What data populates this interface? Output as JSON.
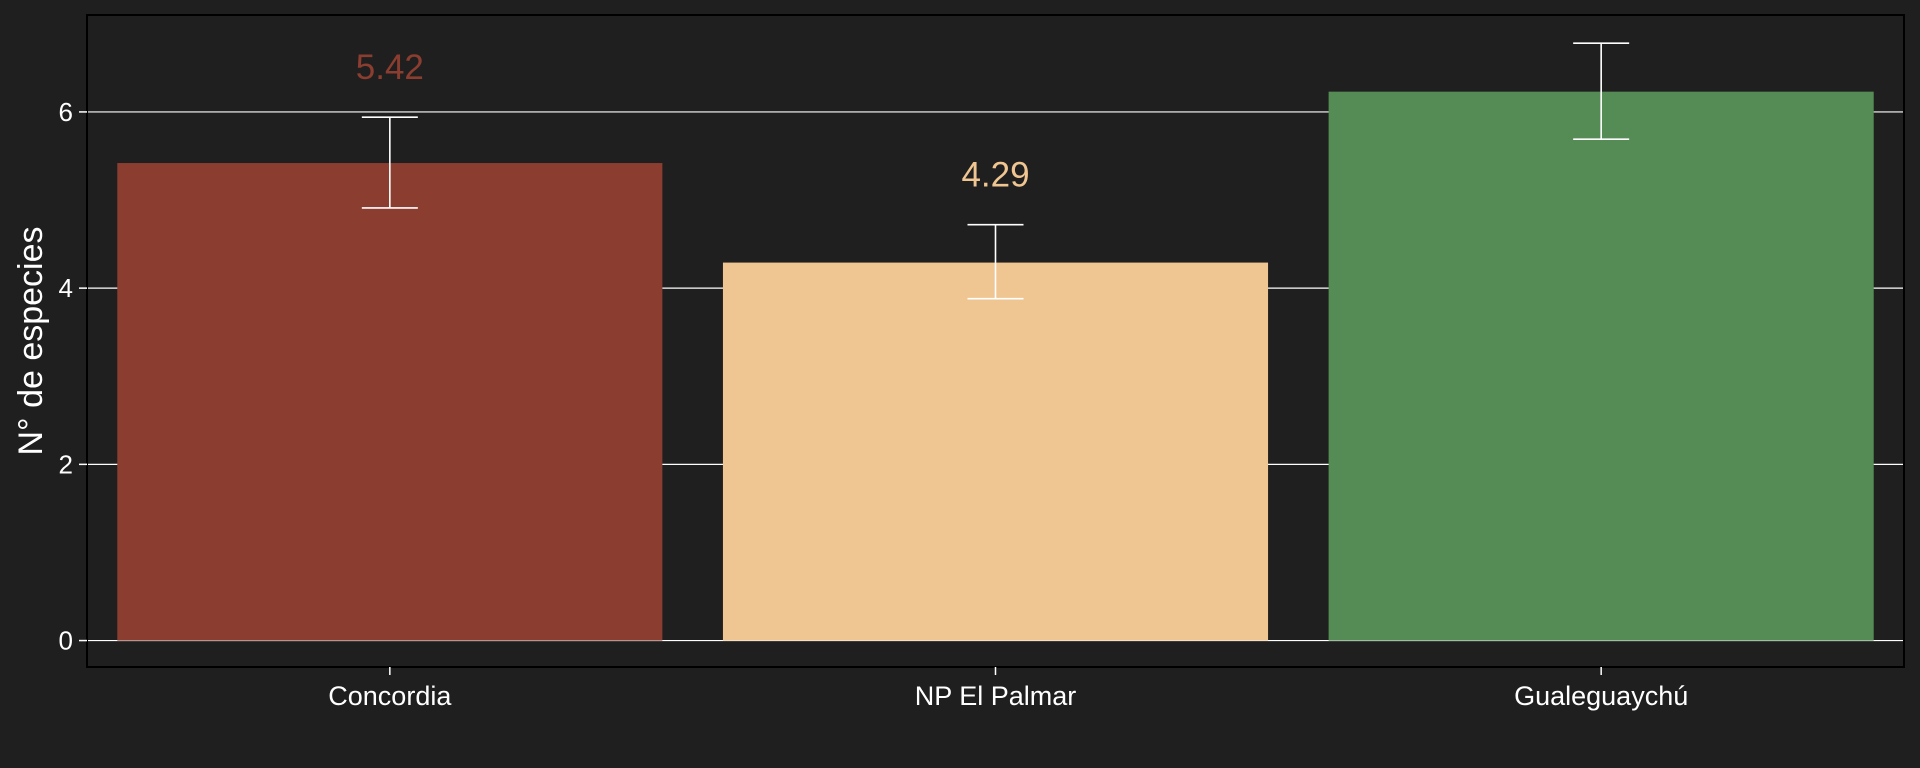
{
  "chart_data": {
    "type": "bar",
    "title": "",
    "xlabel": "",
    "ylabel": "N° de especies",
    "ylim": [
      -0.3,
      7.1
    ],
    "y_ticks": [
      0,
      2,
      4,
      6
    ],
    "y_tick_labels": [
      "0",
      "2",
      "4",
      "6"
    ],
    "grid": "horizontal-major",
    "legend": "none",
    "categories": [
      "Concordia",
      "NP El Palmar",
      "Gualeguaychú"
    ],
    "values": [
      5.42,
      4.29,
      6.23
    ],
    "error_low": [
      4.91,
      3.88,
      5.69
    ],
    "error_high": [
      5.94,
      4.72,
      6.78
    ],
    "data_labels": [
      "5.42",
      "4.29",
      ""
    ],
    "colors": [
      "#8b3d30",
      "#efc592",
      "#558b54"
    ],
    "background_color": "#1f1f1f"
  }
}
